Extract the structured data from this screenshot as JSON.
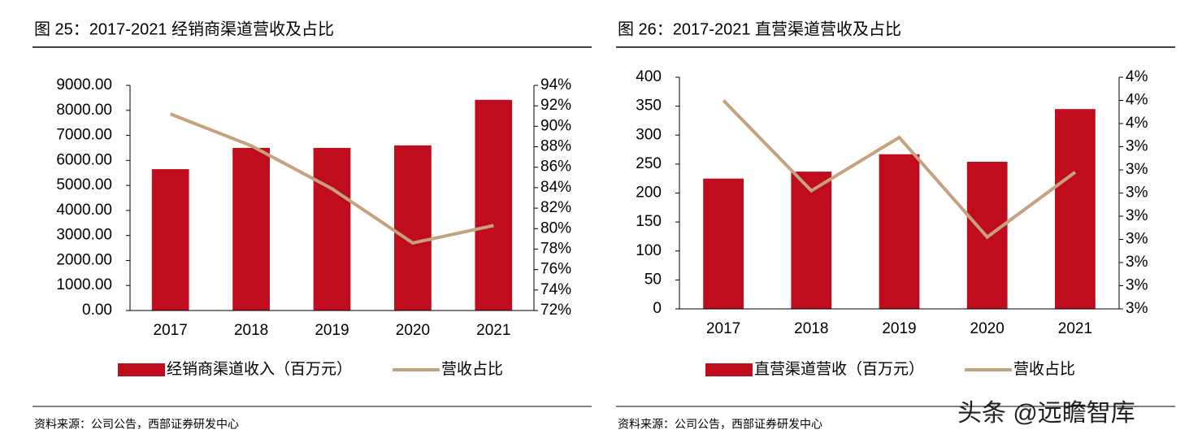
{
  "chart_data": [
    {
      "type": "bar",
      "title": "图 25：2017-2021 经销商渠道营收及占比",
      "source": "资料来源：公司公告，西部证券研发中心",
      "categories": [
        "2017",
        "2018",
        "2019",
        "2020",
        "2021"
      ],
      "series": [
        {
          "name": "经销商渠道收入（百万元）",
          "type": "bar",
          "color": "#c00d1e",
          "values": [
            5650,
            6500,
            6500,
            6600,
            8420
          ]
        },
        {
          "name": "营收占比",
          "type": "line",
          "axis": "y2",
          "color": "#c4a27e",
          "values": [
            91.2,
            88.1,
            83.9,
            78.6,
            80.3
          ]
        }
      ],
      "ylim": [
        0,
        9000
      ],
      "yticks": [
        {
          "value": 0,
          "label": "0.00"
        },
        {
          "value": 1000,
          "label": "1000.00"
        },
        {
          "value": 2000,
          "label": "2000.00"
        },
        {
          "value": 3000,
          "label": "3000.00"
        },
        {
          "value": 4000,
          "label": "4000.00"
        },
        {
          "value": 5000,
          "label": "5000.00"
        },
        {
          "value": 6000,
          "label": "6000.00"
        },
        {
          "value": 7000,
          "label": "7000.00"
        },
        {
          "value": 8000,
          "label": "8000.00"
        },
        {
          "value": 9000,
          "label": "9000.00"
        }
      ],
      "y2lim": [
        72,
        94
      ],
      "y2ticks": [
        {
          "value": 72,
          "label": "72%"
        },
        {
          "value": 74,
          "label": "74%"
        },
        {
          "value": 76,
          "label": "76%"
        },
        {
          "value": 78,
          "label": "78%"
        },
        {
          "value": 80,
          "label": "80%"
        },
        {
          "value": 82,
          "label": "82%"
        },
        {
          "value": 84,
          "label": "84%"
        },
        {
          "value": 86,
          "label": "86%"
        },
        {
          "value": 88,
          "label": "88%"
        },
        {
          "value": 90,
          "label": "90%"
        },
        {
          "value": 92,
          "label": "92%"
        },
        {
          "value": 94,
          "label": "94%"
        }
      ],
      "legend": "bottom"
    },
    {
      "type": "bar",
      "title": "图 26：2017-2021 直营渠道营收及占比",
      "source": "资料来源：公司公告，西部证券研发中心",
      "categories": [
        "2017",
        "2018",
        "2019",
        "2020",
        "2021"
      ],
      "series": [
        {
          "name": "直营渠道营收（百万元）",
          "type": "bar",
          "color": "#c00d1e",
          "values": [
            225,
            237,
            267,
            254,
            345
          ]
        },
        {
          "name": "营收占比",
          "type": "line",
          "axis": "y2",
          "color": "#c4a27e",
          "values": [
            3.6,
            3.21,
            3.44,
            3.01,
            3.29
          ]
        }
      ],
      "ylim": [
        0,
        400
      ],
      "yticks": [
        0,
        50,
        100,
        150,
        200,
        250,
        300,
        350,
        400
      ],
      "y2lim": [
        2.7,
        3.7
      ],
      "y2ticks": [
        {
          "value": 2.7,
          "label": "3%"
        },
        {
          "value": 2.8,
          "label": "3%"
        },
        {
          "value": 2.9,
          "label": "3%"
        },
        {
          "value": 3.0,
          "label": "3%"
        },
        {
          "value": 3.1,
          "label": "3%"
        },
        {
          "value": 3.2,
          "label": "3%"
        },
        {
          "value": 3.3,
          "label": "3%"
        },
        {
          "value": 3.4,
          "label": "3%"
        },
        {
          "value": 3.5,
          "label": "4%"
        },
        {
          "value": 3.6,
          "label": "4%"
        },
        {
          "value": 3.7,
          "label": "4%"
        }
      ],
      "legend": "bottom"
    }
  ],
  "watermark": "头条 @远瞻智库"
}
